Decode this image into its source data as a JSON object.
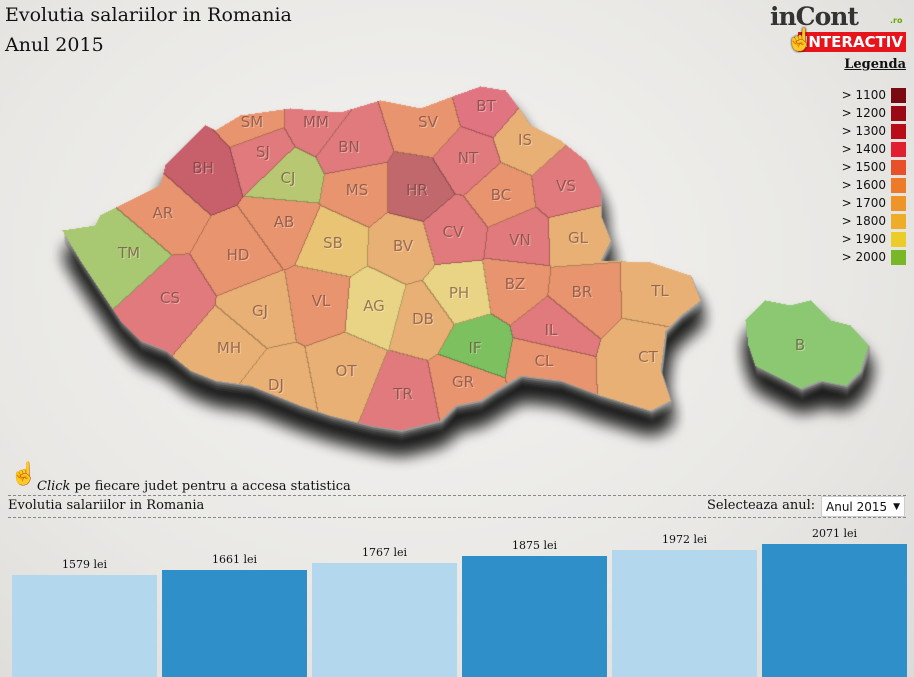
{
  "header": {
    "title": "Evolutia salariilor in Romania",
    "subtitle": "Anul 2015"
  },
  "logo": {
    "brand": "inCont",
    "tld": ".ro",
    "tag": "INTERACTIV"
  },
  "legend": {
    "title": "Legenda",
    "items": [
      {
        "label": "> 1100",
        "color": "#7a0a12"
      },
      {
        "label": "> 1200",
        "color": "#9a0a14"
      },
      {
        "label": "> 1300",
        "color": "#b80c18"
      },
      {
        "label": "> 1400",
        "color": "#e02030"
      },
      {
        "label": "> 1500",
        "color": "#e8502a"
      },
      {
        "label": "> 1600",
        "color": "#ec7a28"
      },
      {
        "label": "> 1700",
        "color": "#ee9428"
      },
      {
        "label": "> 1800",
        "color": "#efac28"
      },
      {
        "label": "> 1900",
        "color": "#eccc28"
      },
      {
        "label": "> 2000",
        "color": "#78b828"
      }
    ]
  },
  "counties": [
    {
      "code": "SM",
      "color": "#e8946e"
    },
    {
      "code": "MM",
      "color": "#e07a7c"
    },
    {
      "code": "BT",
      "color": "#e07480"
    },
    {
      "code": "SV",
      "color": "#e8946e"
    },
    {
      "code": "BH",
      "color": "#c8606c"
    },
    {
      "code": "SJ",
      "color": "#e07a7c"
    },
    {
      "code": "BN",
      "color": "#e07a7c"
    },
    {
      "code": "NT",
      "color": "#e07a7c"
    },
    {
      "code": "IS",
      "color": "#e8b074"
    },
    {
      "code": "CJ",
      "color": "#b8c872"
    },
    {
      "code": "MS",
      "color": "#e8946e"
    },
    {
      "code": "HR",
      "color": "#c0686c"
    },
    {
      "code": "BC",
      "color": "#e8946e"
    },
    {
      "code": "VS",
      "color": "#e07a7c"
    },
    {
      "code": "AR",
      "color": "#e8946e"
    },
    {
      "code": "AB",
      "color": "#e8946e"
    },
    {
      "code": "CV",
      "color": "#e07a7c"
    },
    {
      "code": "TM",
      "color": "#a8c872"
    },
    {
      "code": "HD",
      "color": "#e8946e"
    },
    {
      "code": "SB",
      "color": "#e8c474"
    },
    {
      "code": "BV",
      "color": "#e8b074"
    },
    {
      "code": "VN",
      "color": "#e07a7c"
    },
    {
      "code": "GL",
      "color": "#e8b074"
    },
    {
      "code": "CS",
      "color": "#e07a7c"
    },
    {
      "code": "GJ",
      "color": "#e8b074"
    },
    {
      "code": "VL",
      "color": "#e8946e"
    },
    {
      "code": "AG",
      "color": "#e8d484"
    },
    {
      "code": "PH",
      "color": "#e8d484"
    },
    {
      "code": "BZ",
      "color": "#e8946e"
    },
    {
      "code": "BR",
      "color": "#e8946e"
    },
    {
      "code": "TL",
      "color": "#e8b074"
    },
    {
      "code": "DB",
      "color": "#e8b074"
    },
    {
      "code": "MH",
      "color": "#e8b074"
    },
    {
      "code": "IF",
      "color": "#7cc060"
    },
    {
      "code": "IL",
      "color": "#e07a7c"
    },
    {
      "code": "DJ",
      "color": "#e8b074"
    },
    {
      "code": "OT",
      "color": "#e8b074"
    },
    {
      "code": "TR",
      "color": "#e07a7c"
    },
    {
      "code": "GR",
      "color": "#e8946e"
    },
    {
      "code": "CL",
      "color": "#e8946e"
    },
    {
      "code": "CT",
      "color": "#e8b074"
    },
    {
      "code": "B",
      "color": "#8cc872"
    }
  ],
  "hint": {
    "em": "Click",
    "text": " pe fiecare judet pentru a accesa statistica"
  },
  "section": {
    "title": "Evolutia salariilor in Romania",
    "select_label": "Selecteaza anul:",
    "select_value": "Anul 2015"
  },
  "chart_data": {
    "type": "bar",
    "values": [
      1579,
      1661,
      1767,
      1875,
      1972,
      2071
    ],
    "labels": [
      "1579 lei",
      "1661 lei",
      "1767 lei",
      "1875 lei",
      "1972 lei",
      "2071 lei"
    ],
    "colors": [
      "#b3d7ec",
      "#2f8fc9"
    ]
  }
}
